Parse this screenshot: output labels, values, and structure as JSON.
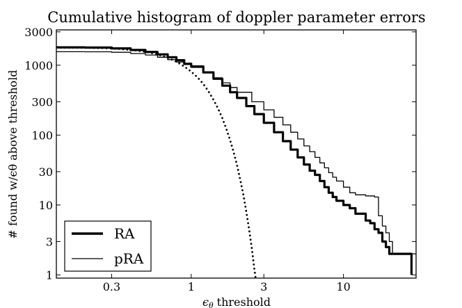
{
  "chart_data": {
    "type": "line",
    "title": "Cumulative histogram of doppler parameter errors",
    "xlabel": "ϵ",
    "xlabel_sub": "θ",
    "xlabel_rest": " threshold",
    "ylabel": "# found w/ϵθ above threshold",
    "xscale": "log",
    "yscale": "log",
    "xlim": [
      0.13,
      30
    ],
    "ylim": [
      0.9,
      3200
    ],
    "x_ticks": [
      {
        "v": 0.3,
        "label": "0.3"
      },
      {
        "v": 1,
        "label": "1"
      },
      {
        "v": 3,
        "label": "3"
      },
      {
        "v": 10,
        "label": "10"
      }
    ],
    "y_ticks": [
      {
        "v": 1,
        "label": "1"
      },
      {
        "v": 3,
        "label": "3"
      },
      {
        "v": 10,
        "label": "10"
      },
      {
        "v": 30,
        "label": "30"
      },
      {
        "v": 100,
        "label": "100"
      },
      {
        "v": 300,
        "label": "300"
      },
      {
        "v": 1000,
        "label": "1000"
      },
      {
        "v": 3000,
        "label": "3000"
      }
    ],
    "grid": false,
    "legend": "bottom-left",
    "series": [
      {
        "name": "RA",
        "style": "thick",
        "color": "#000000",
        "points": [
          [
            0.13,
            1800
          ],
          [
            0.2,
            1790
          ],
          [
            0.3,
            1740
          ],
          [
            0.4,
            1650
          ],
          [
            0.5,
            1550
          ],
          [
            0.6,
            1430
          ],
          [
            0.7,
            1300
          ],
          [
            0.8,
            1180
          ],
          [
            0.9,
            1050
          ],
          [
            1.0,
            960
          ],
          [
            1.2,
            790
          ],
          [
            1.4,
            640
          ],
          [
            1.6,
            510
          ],
          [
            1.8,
            410
          ],
          [
            2.0,
            340
          ],
          [
            2.3,
            260
          ],
          [
            2.6,
            200
          ],
          [
            3.0,
            150
          ],
          [
            3.5,
            110
          ],
          [
            4.0,
            82
          ],
          [
            4.5,
            62
          ],
          [
            5.0,
            48
          ],
          [
            5.5,
            38
          ],
          [
            6.0,
            31
          ],
          [
            6.5,
            27
          ],
          [
            7.0,
            22
          ],
          [
            7.5,
            18
          ],
          [
            8.0,
            15
          ],
          [
            8.5,
            13
          ],
          [
            9.0,
            11.5
          ],
          [
            10.0,
            10
          ],
          [
            11.0,
            9
          ],
          [
            12.0,
            7.5
          ],
          [
            13.0,
            7.5
          ],
          [
            14.0,
            6
          ],
          [
            15.0,
            5.5
          ],
          [
            16.0,
            4.5
          ],
          [
            17.0,
            4
          ],
          [
            18.0,
            3
          ],
          [
            19.0,
            2.5
          ],
          [
            20.0,
            2
          ],
          [
            25.0,
            2
          ],
          [
            28.0,
            2
          ],
          [
            28.0,
            1
          ]
        ]
      },
      {
        "name": "pRA",
        "style": "thin",
        "color": "#000000",
        "points": [
          [
            0.13,
            1560
          ],
          [
            0.2,
            1555
          ],
          [
            0.3,
            1530
          ],
          [
            0.4,
            1470
          ],
          [
            0.5,
            1400
          ],
          [
            0.6,
            1300
          ],
          [
            0.7,
            1200
          ],
          [
            0.8,
            1110
          ],
          [
            0.9,
            1020
          ],
          [
            1.0,
            930
          ],
          [
            1.2,
            780
          ],
          [
            1.4,
            660
          ],
          [
            1.6,
            560
          ],
          [
            1.8,
            480
          ],
          [
            2.0,
            410
          ],
          [
            2.5,
            300
          ],
          [
            3.0,
            230
          ],
          [
            3.5,
            180
          ],
          [
            4.0,
            140
          ],
          [
            4.5,
            110
          ],
          [
            5.0,
            88
          ],
          [
            5.5,
            70
          ],
          [
            6.0,
            58
          ],
          [
            6.5,
            48
          ],
          [
            7.0,
            40
          ],
          [
            7.5,
            34
          ],
          [
            8.0,
            29
          ],
          [
            8.5,
            25
          ],
          [
            9.0,
            22
          ],
          [
            10.0,
            18
          ],
          [
            11.0,
            15
          ],
          [
            12.0,
            14
          ],
          [
            14.0,
            13.5
          ],
          [
            16.0,
            13
          ],
          [
            17.0,
            7
          ],
          [
            18.0,
            5
          ],
          [
            19.0,
            4
          ],
          [
            20.0,
            3
          ],
          [
            21.0,
            2
          ],
          [
            30.0,
            2
          ]
        ]
      },
      {
        "name": "",
        "style": "dotted",
        "color": "#000000",
        "points": [
          [
            0.13,
            1790
          ],
          [
            0.2,
            1780
          ],
          [
            0.3,
            1740
          ],
          [
            0.4,
            1660
          ],
          [
            0.5,
            1560
          ],
          [
            0.6,
            1430
          ],
          [
            0.7,
            1280
          ],
          [
            0.8,
            1120
          ],
          [
            0.9,
            960
          ],
          [
            1.0,
            810
          ],
          [
            1.1,
            670
          ],
          [
            1.2,
            540
          ],
          [
            1.3,
            420
          ],
          [
            1.4,
            320
          ],
          [
            1.5,
            240
          ],
          [
            1.6,
            175
          ],
          [
            1.7,
            123
          ],
          [
            1.8,
            85
          ],
          [
            1.9,
            57
          ],
          [
            2.0,
            37
          ],
          [
            2.1,
            23
          ],
          [
            2.2,
            14
          ],
          [
            2.3,
            8
          ],
          [
            2.4,
            4.5
          ],
          [
            2.5,
            2.4
          ],
          [
            2.55,
            1.7
          ],
          [
            2.6,
            1.2
          ],
          [
            2.65,
            0.9
          ]
        ]
      }
    ]
  }
}
